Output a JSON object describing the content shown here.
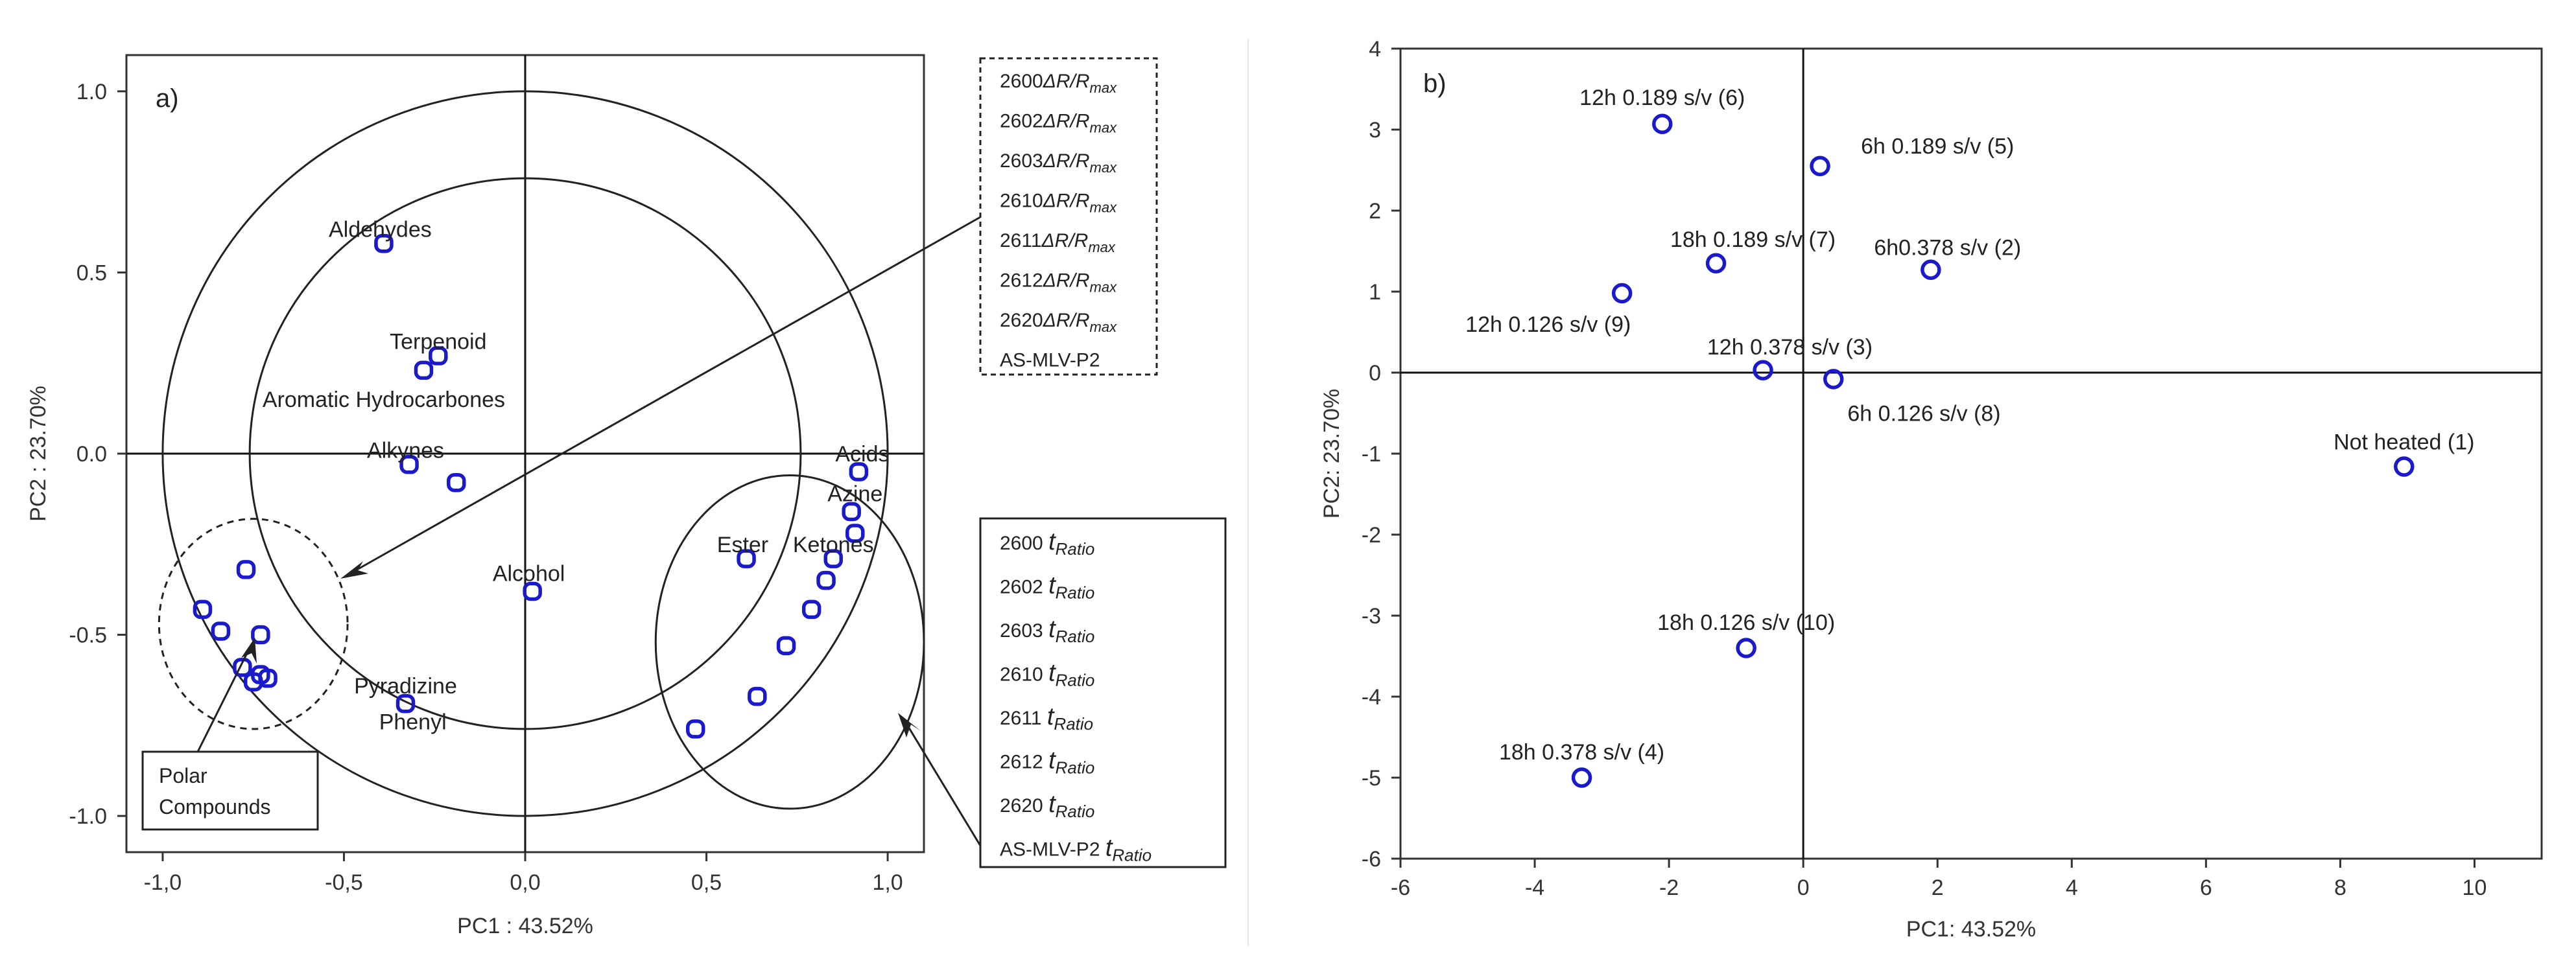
{
  "chart_data": [
    {
      "type": "scatter",
      "panel": "a)",
      "xlabel": "PC1 : 43.52%",
      "ylabel": "PC2 : 23.70%",
      "xlim": [
        -1.1,
        1.1
      ],
      "ylim": [
        -1.1,
        1.1
      ],
      "xticks": [
        {
          "v": -1.0,
          "l": "-1,0"
        },
        {
          "v": -0.5,
          "l": "-0,5"
        },
        {
          "v": 0.0,
          "l": "0,0"
        },
        {
          "v": 0.5,
          "l": "0,5"
        },
        {
          "v": 1.0,
          "l": "1,0"
        }
      ],
      "yticks": [
        {
          "v": 1.0,
          "l": "1.0"
        },
        {
          "v": 0.5,
          "l": "0.5"
        },
        {
          "v": 0.0,
          "l": "0.0"
        },
        {
          "v": -0.5,
          "l": "-0.5"
        },
        {
          "v": -1.0,
          "l": "-1.0"
        }
      ],
      "circles": [
        {
          "cx": 0,
          "cy": 0,
          "r": 1.0,
          "style": "solid"
        },
        {
          "cx": 0,
          "cy": 0,
          "r": 0.76,
          "style": "solid"
        }
      ],
      "ellipses": [
        {
          "cx": -0.75,
          "cy": -0.47,
          "rx": 0.26,
          "ry": 0.29,
          "style": "dashed"
        },
        {
          "cx": 0.73,
          "cy": -0.52,
          "rx": 0.37,
          "ry": 0.46,
          "style": "solid"
        }
      ],
      "points": [
        {
          "x": -0.39,
          "y": 0.58
        },
        {
          "x": -0.24,
          "y": 0.27
        },
        {
          "x": -0.28,
          "y": 0.23
        },
        {
          "x": -0.32,
          "y": -0.03
        },
        {
          "x": -0.19,
          "y": -0.08
        },
        {
          "x": 0.02,
          "y": -0.38
        },
        {
          "x": -0.77,
          "y": -0.32
        },
        {
          "x": -0.89,
          "y": -0.43
        },
        {
          "x": -0.84,
          "y": -0.49
        },
        {
          "x": -0.73,
          "y": -0.5
        },
        {
          "x": -0.78,
          "y": -0.59
        },
        {
          "x": -0.75,
          "y": -0.63
        },
        {
          "x": -0.73,
          "y": -0.61
        },
        {
          "x": -0.71,
          "y": -0.62
        },
        {
          "x": -0.33,
          "y": -0.69
        },
        {
          "x": 0.92,
          "y": -0.05
        },
        {
          "x": 0.9,
          "y": -0.16
        },
        {
          "x": 0.91,
          "y": -0.22
        },
        {
          "x": 0.85,
          "y": -0.29
        },
        {
          "x": 0.83,
          "y": -0.35
        },
        {
          "x": 0.79,
          "y": -0.43
        },
        {
          "x": 0.72,
          "y": -0.53
        },
        {
          "x": 0.61,
          "y": -0.29
        },
        {
          "x": 0.64,
          "y": -0.67
        },
        {
          "x": 0.47,
          "y": -0.76
        }
      ],
      "labels": [
        {
          "text": "Aldehydes",
          "x": -0.4,
          "y": 0.62
        },
        {
          "text": "Terpenoid",
          "x": -0.24,
          "y": 0.31
        },
        {
          "text": "Aromatic Hydrocarbones",
          "x": -0.39,
          "y": 0.15
        },
        {
          "text": "Alkynes",
          "x": -0.33,
          "y": 0.01
        },
        {
          "text": "Alcohol",
          "x": 0.01,
          "y": -0.33
        },
        {
          "text": "Acids",
          "x": 0.93,
          "y": 0.0
        },
        {
          "text": "Azine",
          "x": 0.91,
          "y": -0.11
        },
        {
          "text": "Ester",
          "x": 0.6,
          "y": -0.25
        },
        {
          "text": "Ketones",
          "x": 0.85,
          "y": -0.25
        },
        {
          "text": "Pyradizine",
          "x": -0.33,
          "y": -0.64
        },
        {
          "text": "Phenyl",
          "x": -0.31,
          "y": -0.74
        }
      ],
      "legend_top": [
        "2600",
        "2602",
        "2603",
        "2610",
        "2611",
        "2612",
        "2620",
        "AS-MLV-P2"
      ],
      "legend_top_suffix": "ΔR/Rmax",
      "legend_bottom": [
        "2600",
        "2602",
        "2603",
        "2610",
        "2611",
        "2612",
        "2620",
        "AS-MLV-P2"
      ],
      "legend_bottom_suffix": "tRatio",
      "polar_box": [
        "Polar",
        "Compounds"
      ]
    },
    {
      "type": "scatter",
      "panel": "b)",
      "xlabel": "PC1: 43.52%",
      "ylabel": "PC2: 23.70%",
      "xlim": [
        -6,
        11
      ],
      "ylim": [
        -6,
        4
      ],
      "xticks": [
        -6,
        -4,
        -2,
        0,
        2,
        4,
        6,
        8,
        10
      ],
      "yticks": [
        4,
        3,
        2,
        1,
        0,
        -1,
        -2,
        -3,
        -4,
        -5,
        -6
      ],
      "points": [
        {
          "label": "12h 0.189 s/v (6)",
          "x": -2.1,
          "y": 3.07,
          "lx": -2.1,
          "ly": 3.4
        },
        {
          "label": "6h 0.189 s/v (5)",
          "x": 0.25,
          "y": 2.55,
          "lx": 2.0,
          "ly": 2.8
        },
        {
          "label": "18h 0.189 s/v (7)",
          "x": -1.3,
          "y": 1.35,
          "lx": -0.75,
          "ly": 1.65
        },
        {
          "label": "6h0.378 s/v (2)",
          "x": 1.9,
          "y": 1.27,
          "lx": 2.15,
          "ly": 1.55
        },
        {
          "label": "12h 0.126 s/v (9)",
          "x": -2.7,
          "y": 0.98,
          "lx": -3.8,
          "ly": 0.6
        },
        {
          "label": "12h 0.378 s/v (3)",
          "x": -0.6,
          "y": 0.03,
          "lx": -0.2,
          "ly": 0.32
        },
        {
          "label": "6h 0.126 s/v (8)",
          "x": 0.45,
          "y": -0.08,
          "lx": 1.8,
          "ly": -0.5
        },
        {
          "label": "Not heated (1)",
          "x": 8.95,
          "y": -1.16,
          "lx": 8.95,
          "ly": -0.85
        },
        {
          "label": "18h 0.126 s/v (10)",
          "x": -0.85,
          "y": -3.4,
          "lx": -0.85,
          "ly": -3.08
        },
        {
          "label": "18h 0.378 s/v (4)",
          "x": -3.3,
          "y": -5.0,
          "lx": -3.3,
          "ly": -4.68
        }
      ]
    }
  ]
}
